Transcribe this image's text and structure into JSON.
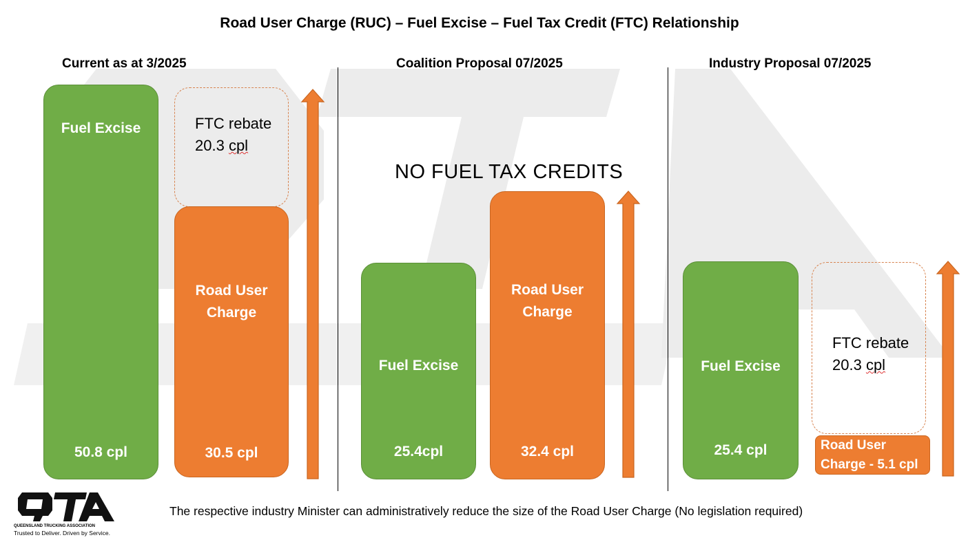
{
  "title": "Road User Charge (RUC) – Fuel Excise – Fuel Tax Credit (FTC) Relationship",
  "panels": {
    "current": {
      "heading": "Current as at 3/2025",
      "excise_label": "Fuel Excise",
      "excise_value": "50.8 cpl",
      "ftc_line1": "FTC rebate",
      "ftc_num": "20.3 ",
      "ftc_unit": "cpl",
      "ruc_line1": "Road User",
      "ruc_line2": "Charge",
      "ruc_value": "30.5 cpl"
    },
    "coalition": {
      "heading": "Coalition Proposal 07/2025",
      "notice": "NO FUEL TAX CREDITS",
      "excise_label": "Fuel Excise",
      "excise_value": "25.4cpl",
      "ruc_line1": "Road User",
      "ruc_line2": "Charge",
      "ruc_value": "32.4 cpl"
    },
    "industry": {
      "heading": "Industry Proposal 07/2025",
      "excise_label": "Fuel Excise",
      "excise_value": "25.4 cpl",
      "ftc_line1": "FTC rebate",
      "ftc_num": "20.3 ",
      "ftc_unit": "cpl",
      "ruc_line1": "Road User",
      "ruc_line2": "Charge - 5.1 cpl"
    }
  },
  "footer": "The respective industry Minister can administratively reduce the size of the Road User Charge (No legislation required)",
  "logo": {
    "mark": "QTA",
    "tagline1": "QUEENSLAND TRUCKING ASSOCIATION",
    "tagline2": "Trusted to Deliver. Driven by Service."
  },
  "colors": {
    "excise": "#70ad47",
    "ruc": "#ed7d31",
    "arrow": "#ed7d31",
    "ftc_border": "#d7834f"
  }
}
